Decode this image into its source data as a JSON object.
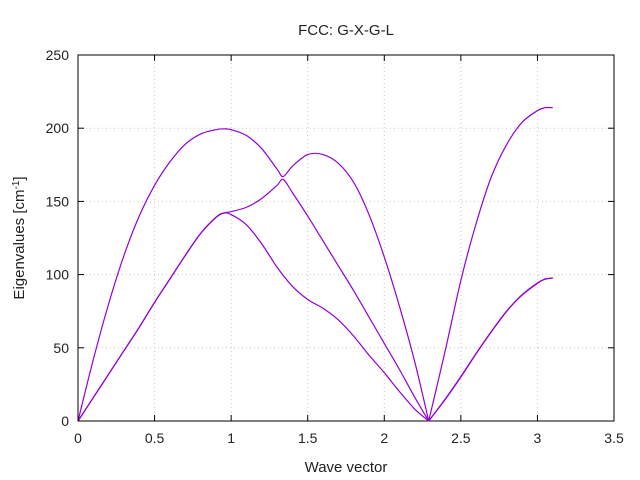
{
  "chart_data": {
    "type": "line",
    "title": "FCC: G-X-G-L",
    "xlabel": "Wave vector",
    "ylabel": "Eigenvalues [cm",
    "ylabel_unit_exponent": "-1",
    "ylabel_close": "]",
    "xlim": [
      0,
      3.5
    ],
    "ylim": [
      0,
      250
    ],
    "x_ticks": [
      "0",
      "0.5",
      "1",
      "1.5",
      "2",
      "2.5",
      "3",
      "3.5"
    ],
    "y_ticks": [
      "0",
      "50",
      "100",
      "150",
      "200",
      "250"
    ],
    "grid": true,
    "line_color": "#9400d3",
    "series": [
      {
        "x": [
          0,
          0.1,
          0.2,
          0.3,
          0.4,
          0.5,
          0.6,
          0.7,
          0.8,
          0.9,
          0.95,
          1.0,
          1.1,
          1.2,
          1.3,
          1.34,
          1.4,
          1.5,
          1.6,
          1.7,
          1.8,
          1.9,
          2.0,
          2.1,
          2.2,
          2.29
        ],
        "values": [
          0,
          42,
          80,
          113,
          140,
          161,
          177,
          189,
          196,
          199,
          199.5,
          199,
          195,
          186,
          172,
          167,
          174,
          182,
          182,
          176,
          163,
          141,
          112,
          78,
          40,
          0
        ]
      },
      {
        "x": [
          0,
          0.1,
          0.2,
          0.3,
          0.4,
          0.5,
          0.6,
          0.7,
          0.8,
          0.9,
          0.95,
          1.0,
          1.1,
          1.2,
          1.3,
          1.34,
          1.4,
          1.5,
          1.6,
          1.7,
          1.8,
          1.9,
          2.0,
          2.1,
          2.2,
          2.29
        ],
        "values": [
          0,
          16,
          32,
          48,
          64,
          81,
          97,
          113,
          128,
          139,
          142,
          143,
          146,
          152,
          161,
          165,
          156,
          140,
          123,
          106,
          89,
          71,
          53,
          35,
          16,
          0
        ]
      },
      {
        "x": [
          0,
          0.1,
          0.2,
          0.3,
          0.4,
          0.5,
          0.6,
          0.7,
          0.8,
          0.9,
          0.95,
          1.0,
          1.1,
          1.2,
          1.3,
          1.4,
          1.5,
          1.6,
          1.7,
          1.8,
          1.9,
          2.0,
          2.1,
          2.2,
          2.29
        ],
        "values": [
          0,
          16,
          32,
          48,
          64,
          81,
          97,
          113,
          128,
          139,
          142,
          141,
          134,
          121,
          105,
          92,
          83,
          77,
          69,
          58,
          45,
          33,
          20,
          8,
          0
        ]
      },
      {
        "x": [
          2.29,
          2.4,
          2.5,
          2.6,
          2.7,
          2.8,
          2.9,
          3.0,
          3.05,
          3.1
        ],
        "values": [
          0,
          49,
          96,
          135,
          167,
          189,
          204,
          212,
          214,
          214
        ]
      },
      {
        "x": [
          2.29,
          2.4,
          2.5,
          2.6,
          2.7,
          2.8,
          2.9,
          3.0,
          3.05,
          3.1
        ],
        "values": [
          0,
          15,
          30,
          46,
          61,
          75,
          86,
          94,
          97,
          97.5
        ]
      },
      {
        "x": [
          2.29,
          2.4,
          2.5,
          2.6,
          2.7,
          2.8,
          2.9,
          3.0,
          3.05,
          3.1
        ],
        "values": [
          0,
          15.3,
          30.4,
          46.2,
          61.3,
          75.2,
          86.3,
          94.3,
          96.8,
          97.8
        ]
      }
    ]
  }
}
